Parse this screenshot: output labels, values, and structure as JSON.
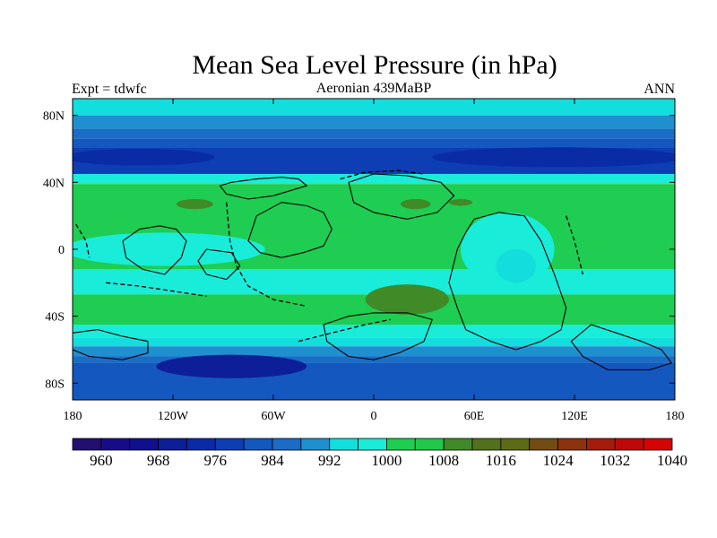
{
  "chart_data": {
    "type": "heatmap",
    "title": "Mean Sea Level Pressure (in hPa)",
    "subtitle_left": "Expt = tdwfc",
    "subtitle_center": "Aeronian 439MaBP",
    "subtitle_right": "ANN",
    "xlim": [
      -180,
      180
    ],
    "ylim": [
      -90,
      90
    ],
    "x_ticks": [
      {
        "value": -180,
        "label": "180"
      },
      {
        "value": -120,
        "label": "120W"
      },
      {
        "value": -60,
        "label": "60W"
      },
      {
        "value": 0,
        "label": "0"
      },
      {
        "value": 60,
        "label": "60E"
      },
      {
        "value": 120,
        "label": "120E"
      },
      {
        "value": 180,
        "label": "180"
      }
    ],
    "y_ticks": [
      {
        "value": 80,
        "label": "80N"
      },
      {
        "value": 40,
        "label": "40N"
      },
      {
        "value": 0,
        "label": "0"
      },
      {
        "value": -40,
        "label": "40S"
      },
      {
        "value": -80,
        "label": "80S"
      }
    ],
    "colorbar": {
      "levels_start": 956,
      "level_step": 4,
      "colors": [
        "#230f70",
        "#170c88",
        "#10108e",
        "#0c1e98",
        "#0a2ba6",
        "#0e3eb3",
        "#1457bf",
        "#1b6cc6",
        "#1f90cf",
        "#13dedd",
        "#19ecd8",
        "#1ecd51",
        "#21c84a",
        "#418a28",
        "#52711c",
        "#5e6b16",
        "#724c10",
        "#8c330e",
        "#a51c0a",
        "#bd0a08",
        "#d40404"
      ],
      "labels": [
        "960",
        "968",
        "976",
        "984",
        "992",
        "1000",
        "1008",
        "1016",
        "1024",
        "1032",
        "1040"
      ]
    },
    "zonal_bands": [
      {
        "lat_range": [
          80,
          90
        ],
        "level": 988
      },
      {
        "lat_range": [
          72,
          80
        ],
        "level": 984
      },
      {
        "lat_range": [
          66,
          72
        ],
        "level": 980
      },
      {
        "lat_range": [
          61,
          66
        ],
        "level": 976
      },
      {
        "lat_range": [
          45,
          61
        ],
        "level": 972
      },
      {
        "lat_range": [
          39,
          45
        ],
        "level": 992
      },
      {
        "lat_range": [
          -12,
          39
        ],
        "level": 996
      },
      {
        "lat_range": [
          -27,
          -12
        ],
        "level": 992
      },
      {
        "lat_range": [
          -45,
          -27
        ],
        "level": 996
      },
      {
        "lat_range": [
          -53,
          -45
        ],
        "level": 992
      },
      {
        "lat_range": [
          -58,
          -53
        ],
        "level": 988
      },
      {
        "lat_range": [
          -64,
          -58
        ],
        "level": 984
      },
      {
        "lat_range": [
          -68,
          -64
        ],
        "level": 980
      },
      {
        "lat_range": [
          -90,
          -68
        ],
        "level": 976
      }
    ],
    "features": [
      {
        "name": "subpolar-low-north-west",
        "lon": -140,
        "lat": 55,
        "rx": 45,
        "ry": 5,
        "level": 968
      },
      {
        "name": "subpolar-low-north-east",
        "lon": 110,
        "lat": 55,
        "rx": 75,
        "ry": 6,
        "level": 968
      },
      {
        "name": "subpolar-low-south",
        "lon": -85,
        "lat": -70,
        "rx": 45,
        "ry": 7,
        "level": 964
      },
      {
        "name": "subtropical-high-northwest",
        "lon": -107,
        "lat": 27,
        "rx": 11,
        "ry": 3,
        "level": 1004
      },
      {
        "name": "subtropical-high-north",
        "lon": 25,
        "lat": 27,
        "rx": 9,
        "ry": 3,
        "level": 1004
      },
      {
        "name": "subtropical-high-northeast",
        "lon": 52,
        "lat": 28,
        "rx": 7,
        "ry": 2,
        "level": 1004
      },
      {
        "name": "subtropical-high-south",
        "lon": 20,
        "lat": -30,
        "rx": 25,
        "ry": 9,
        "level": 1004
      },
      {
        "name": "equatorial-trough-west",
        "lon": -125,
        "lat": 0,
        "rx": 60,
        "ry": 10,
        "level": 992
      },
      {
        "name": "continental-low-east",
        "lon": 80,
        "lat": 0,
        "rx": 28,
        "ry": 22,
        "level": 992
      },
      {
        "name": "continental-low-east-core",
        "lon": 85,
        "lat": -10,
        "rx": 12,
        "ry": 10,
        "level": 988
      }
    ],
    "coastlines": [
      {
        "name": "northern-island",
        "points": [
          [
            -92,
            38
          ],
          [
            -85,
            40
          ],
          [
            -70,
            42
          ],
          [
            -55,
            43
          ],
          [
            -45,
            42
          ],
          [
            -40,
            38
          ],
          [
            -50,
            35
          ],
          [
            -60,
            32
          ],
          [
            -75,
            30
          ],
          [
            -88,
            33
          ],
          [
            -92,
            38
          ]
        ]
      },
      {
        "name": "central-landmass",
        "points": [
          [
            -70,
            20
          ],
          [
            -55,
            28
          ],
          [
            -40,
            26
          ],
          [
            -30,
            22
          ],
          [
            -25,
            12
          ],
          [
            -30,
            2
          ],
          [
            -42,
            -2
          ],
          [
            -55,
            -5
          ],
          [
            -68,
            -2
          ],
          [
            -75,
            5
          ],
          [
            -72,
            14
          ],
          [
            -70,
            20
          ]
        ]
      },
      {
        "name": "western-landmass",
        "points": [
          [
            -150,
            5
          ],
          [
            -140,
            12
          ],
          [
            -128,
            14
          ],
          [
            -118,
            12
          ],
          [
            -112,
            5
          ],
          [
            -115,
            -5
          ],
          [
            -125,
            -15
          ],
          [
            -138,
            -12
          ],
          [
            -148,
            -5
          ],
          [
            -150,
            5
          ]
        ]
      },
      {
        "name": "southwest-landmass",
        "points": [
          [
            -100,
            0
          ],
          [
            -85,
            -2
          ],
          [
            -80,
            -10
          ],
          [
            -88,
            -18
          ],
          [
            -100,
            -15
          ],
          [
            -105,
            -7
          ],
          [
            -100,
            0
          ]
        ]
      },
      {
        "name": "north-continent",
        "points": [
          [
            -15,
            40
          ],
          [
            0,
            45
          ],
          [
            20,
            44
          ],
          [
            40,
            40
          ],
          [
            48,
            32
          ],
          [
            38,
            22
          ],
          [
            20,
            18
          ],
          [
            0,
            22
          ],
          [
            -12,
            28
          ],
          [
            -15,
            40
          ]
        ]
      },
      {
        "name": "east-continent",
        "points": [
          [
            60,
            18
          ],
          [
            75,
            22
          ],
          [
            90,
            20
          ],
          [
            100,
            5
          ],
          [
            108,
            -15
          ],
          [
            115,
            -35
          ],
          [
            112,
            -48
          ],
          [
            100,
            -55
          ],
          [
            85,
            -60
          ],
          [
            70,
            -55
          ],
          [
            55,
            -48
          ],
          [
            50,
            -35
          ],
          [
            45,
            -20
          ],
          [
            50,
            0
          ],
          [
            55,
            10
          ],
          [
            60,
            18
          ]
        ]
      },
      {
        "name": "south-continent",
        "points": [
          [
            -30,
            -45
          ],
          [
            -15,
            -40
          ],
          [
            0,
            -38
          ],
          [
            20,
            -38
          ],
          [
            35,
            -42
          ],
          [
            30,
            -55
          ],
          [
            15,
            -62
          ],
          [
            0,
            -66
          ],
          [
            -15,
            -64
          ],
          [
            -28,
            -55
          ],
          [
            -30,
            -45
          ]
        ]
      },
      {
        "name": "far-east-coast",
        "points": [
          [
            130,
            -45
          ],
          [
            145,
            -50
          ],
          [
            160,
            -55
          ],
          [
            172,
            -60
          ],
          [
            178,
            -68
          ],
          [
            165,
            -72
          ],
          [
            140,
            -72
          ],
          [
            125,
            -64
          ],
          [
            118,
            -55
          ],
          [
            130,
            -45
          ]
        ]
      },
      {
        "name": "far-west-coast",
        "points": [
          [
            -180,
            -50
          ],
          [
            -165,
            -48
          ],
          [
            -150,
            -52
          ],
          [
            -135,
            -55
          ],
          [
            -135,
            -62
          ],
          [
            -150,
            -66
          ],
          [
            -170,
            -64
          ],
          [
            -180,
            -60
          ]
        ]
      }
    ],
    "dashed_coastlines": [
      {
        "name": "north-arc",
        "points": [
          [
            -88,
            28
          ],
          [
            -86,
            5
          ],
          [
            -82,
            -10
          ],
          [
            -75,
            -22
          ],
          [
            -60,
            -30
          ],
          [
            -40,
            -34
          ]
        ]
      },
      {
        "name": "north-shelf",
        "points": [
          [
            -20,
            42
          ],
          [
            -5,
            46
          ],
          [
            15,
            47
          ],
          [
            30,
            45
          ]
        ]
      },
      {
        "name": "east-shelf",
        "points": [
          [
            115,
            20
          ],
          [
            120,
            5
          ],
          [
            125,
            -15
          ]
        ]
      },
      {
        "name": "south-shelf",
        "points": [
          [
            -45,
            -55
          ],
          [
            -25,
            -50
          ],
          [
            -5,
            -45
          ],
          [
            10,
            -42
          ]
        ]
      },
      {
        "name": "west-shelf",
        "points": [
          [
            -178,
            15
          ],
          [
            -172,
            5
          ],
          [
            -170,
            -5
          ]
        ]
      },
      {
        "name": "southwest-shelf",
        "points": [
          [
            -160,
            -20
          ],
          [
            -140,
            -22
          ],
          [
            -120,
            -25
          ],
          [
            -100,
            -28
          ]
        ]
      }
    ]
  }
}
